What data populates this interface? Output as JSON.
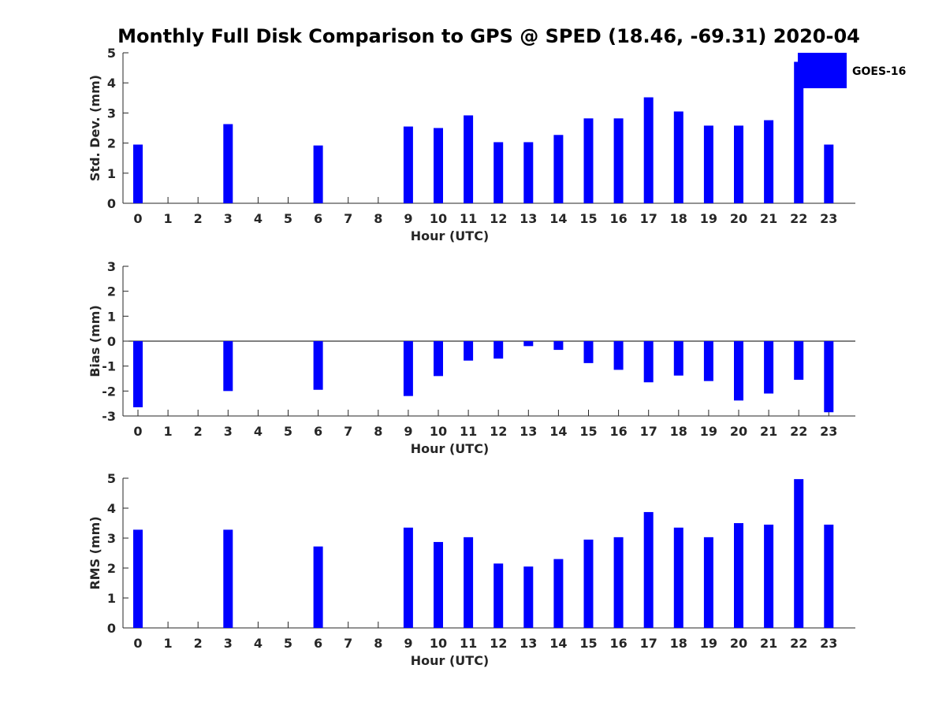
{
  "figure": {
    "title": "Monthly Full Disk Comparison to GPS @ SPED (18.46, -69.31) 2020-04",
    "series_color": "#0000ff",
    "legend": {
      "label": "GOES-16",
      "placement": "top-right"
    }
  },
  "chart_data": [
    {
      "type": "bar",
      "xlabel": "Hour (UTC)",
      "ylabel": "Std. Dev. (mm)",
      "ylim": [
        0,
        5
      ],
      "yticks": [
        "0",
        "1",
        "2",
        "3",
        "4",
        "5"
      ],
      "categories": [
        "0",
        "1",
        "2",
        "3",
        "4",
        "5",
        "6",
        "7",
        "8",
        "9",
        "10",
        "11",
        "12",
        "13",
        "14",
        "15",
        "16",
        "17",
        "18",
        "19",
        "20",
        "21",
        "22",
        "23"
      ],
      "series": [
        {
          "name": "GOES-16",
          "values": [
            1.95,
            null,
            null,
            2.63,
            null,
            null,
            1.92,
            null,
            null,
            2.55,
            2.5,
            2.92,
            2.03,
            2.03,
            2.27,
            2.82,
            2.82,
            3.52,
            3.05,
            2.58,
            2.58,
            2.76,
            4.7,
            1.95
          ]
        }
      ]
    },
    {
      "type": "bar",
      "xlabel": "Hour (UTC)",
      "ylabel": "Bias (mm)",
      "ylim": [
        -3,
        3
      ],
      "yticks": [
        "-3",
        "-2",
        "-1",
        "0",
        "1",
        "2",
        "3"
      ],
      "categories": [
        "0",
        "1",
        "2",
        "3",
        "4",
        "5",
        "6",
        "7",
        "8",
        "9",
        "10",
        "11",
        "12",
        "13",
        "14",
        "15",
        "16",
        "17",
        "18",
        "19",
        "20",
        "21",
        "22",
        "23"
      ],
      "series": [
        {
          "name": "GOES-16",
          "values": [
            -2.65,
            null,
            null,
            -2.0,
            null,
            null,
            -1.95,
            null,
            null,
            -2.2,
            -1.4,
            -0.78,
            -0.7,
            -0.2,
            -0.35,
            -0.88,
            -1.15,
            -1.65,
            -1.38,
            -1.6,
            -2.38,
            -2.1,
            -1.55,
            -2.85
          ]
        }
      ]
    },
    {
      "type": "bar",
      "xlabel": "Hour (UTC)",
      "ylabel": "RMS (mm)",
      "ylim": [
        0,
        5
      ],
      "yticks": [
        "0",
        "1",
        "2",
        "3",
        "4",
        "5"
      ],
      "categories": [
        "0",
        "1",
        "2",
        "3",
        "4",
        "5",
        "6",
        "7",
        "8",
        "9",
        "10",
        "11",
        "12",
        "13",
        "14",
        "15",
        "16",
        "17",
        "18",
        "19",
        "20",
        "21",
        "22",
        "23"
      ],
      "series": [
        {
          "name": "GOES-16",
          "values": [
            3.28,
            null,
            null,
            3.28,
            null,
            null,
            2.72,
            null,
            null,
            3.35,
            2.87,
            3.03,
            2.15,
            2.05,
            2.3,
            2.95,
            3.03,
            3.87,
            3.35,
            3.03,
            3.5,
            3.45,
            4.97,
            3.45
          ]
        }
      ]
    }
  ]
}
